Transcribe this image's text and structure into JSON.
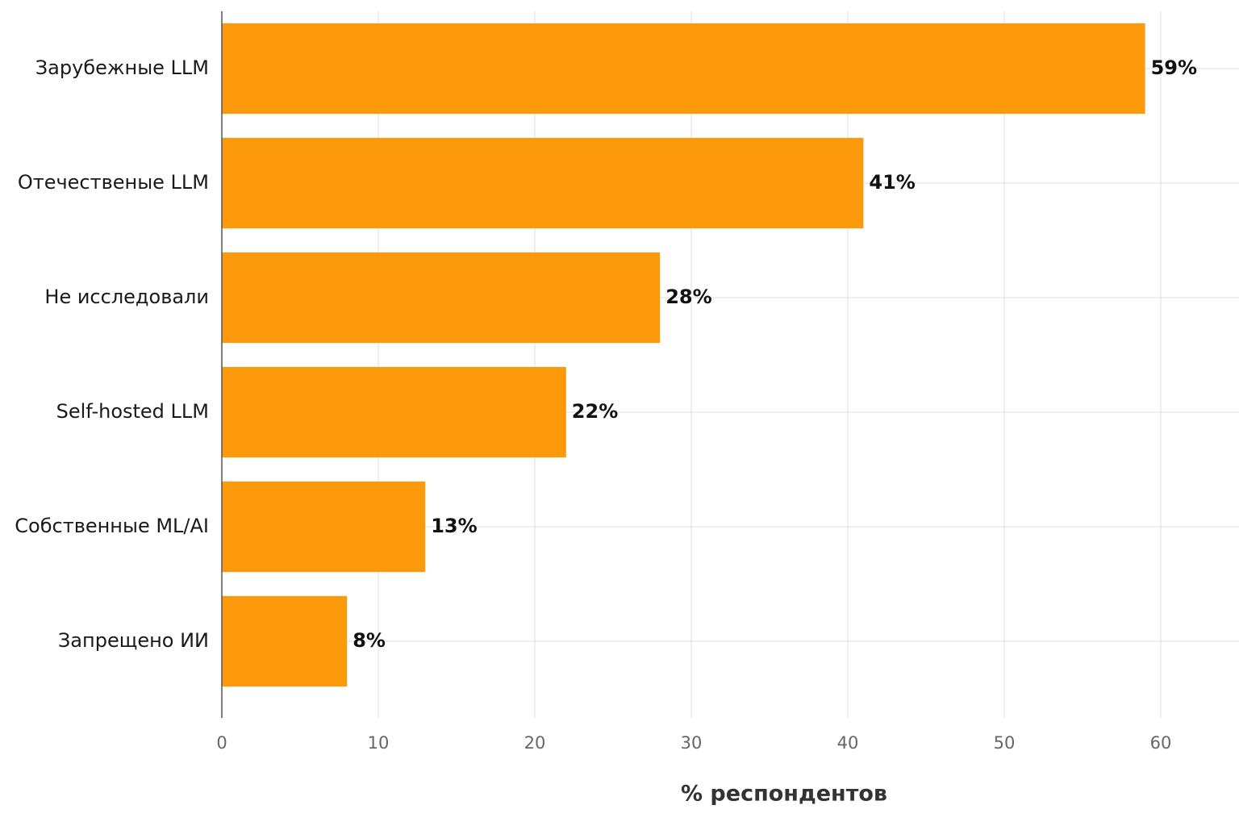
{
  "chart_data": {
    "type": "bar",
    "orientation": "horizontal",
    "categories": [
      "Зарубежные LLM",
      "Отечественые LLM",
      "Не исследовали",
      "Self-hosted LLM",
      "Собственные ML/AI",
      "Запрещено ИИ"
    ],
    "values": [
      59,
      41,
      28,
      22,
      13,
      8
    ],
    "value_labels": [
      "59%",
      "41%",
      "28%",
      "22%",
      "13%",
      "8%"
    ],
    "color": "#fd9a0c",
    "x_label": "% респондентов",
    "xlim": [
      0,
      65
    ],
    "xticks": [
      0,
      10,
      20,
      30,
      40,
      50,
      60
    ],
    "grid": true
  }
}
